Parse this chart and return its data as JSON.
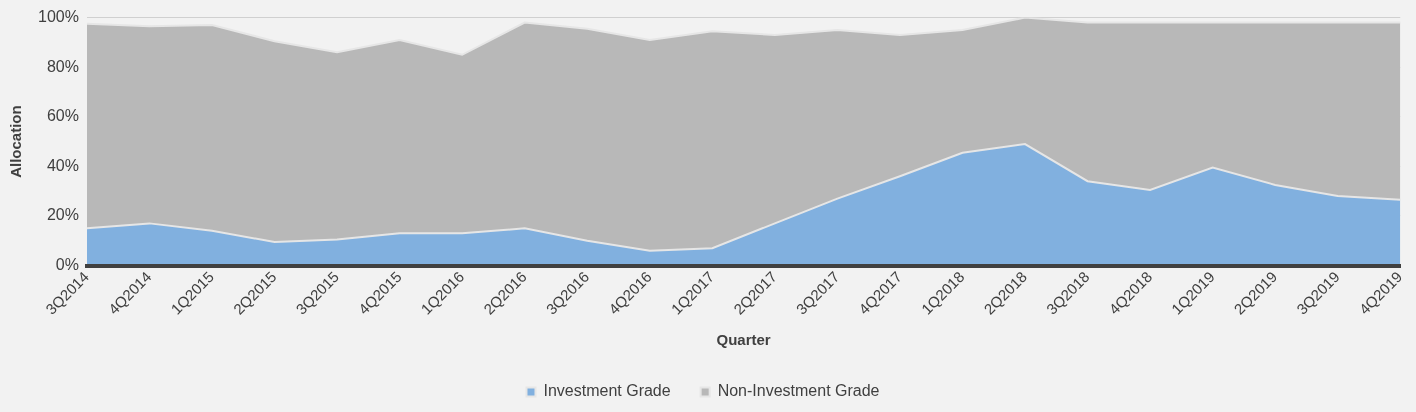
{
  "chart_data": {
    "type": "area",
    "stacked": true,
    "xlabel": "Quarter",
    "ylabel": "Allocation",
    "categories": [
      "3Q2014",
      "4Q2014",
      "1Q2015",
      "2Q2015",
      "3Q2015",
      "4Q2015",
      "1Q2016",
      "2Q2016",
      "3Q2016",
      "4Q2016",
      "1Q2017",
      "2Q2017",
      "3Q2017",
      "4Q2017",
      "1Q2018",
      "2Q2018",
      "3Q2018",
      "4Q2018",
      "1Q2019",
      "2Q2019",
      "3Q2019",
      "4Q2019"
    ],
    "series": [
      {
        "name": "Investment Grade",
        "color": "#81b0df",
        "values": [
          15,
          17,
          14,
          9.5,
          10.5,
          13,
          13,
          15,
          10,
          6,
          7,
          17,
          27,
          36,
          45.5,
          49,
          34,
          30.5,
          39.5,
          32.5,
          28,
          26.5
        ]
      },
      {
        "name": "Non-Investment Grade",
        "color": "#b8b8b8",
        "values": [
          82.5,
          79.5,
          83,
          81,
          75.5,
          78,
          72,
          83,
          85.5,
          85,
          87.5,
          76,
          68,
          57,
          49.5,
          51,
          64,
          67.5,
          58.5,
          65.5,
          70,
          71.5
        ]
      }
    ],
    "ylim": [
      0,
      100
    ],
    "yticks": [
      {
        "value": 0,
        "label": "0%"
      },
      {
        "value": 20,
        "label": "20%"
      },
      {
        "value": 40,
        "label": "40%"
      },
      {
        "value": 60,
        "label": "60%"
      },
      {
        "value": 80,
        "label": "80%"
      },
      {
        "value": 100,
        "label": "100%"
      }
    ],
    "grid": "y",
    "legend": "bottom"
  }
}
